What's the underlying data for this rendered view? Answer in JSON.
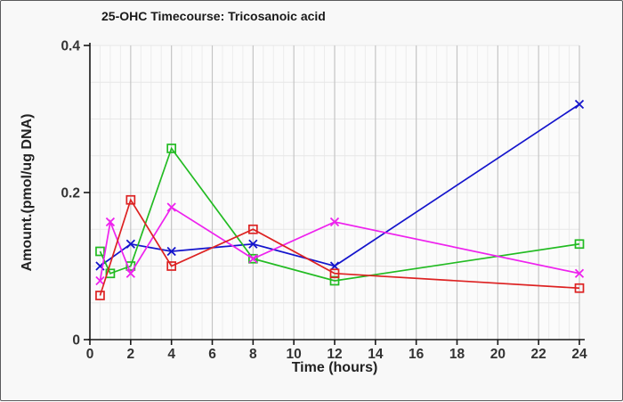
{
  "chart_data": {
    "type": "line",
    "title": "25-OHC Timecourse: Tricosanoic acid",
    "xlabel": "Time (hours)",
    "ylabel": "Amount.(pmol/ug DNA)",
    "xlim": [
      0,
      24
    ],
    "ylim": [
      0,
      0.4
    ],
    "x_ticks": [
      0,
      2,
      4,
      6,
      8,
      10,
      12,
      14,
      16,
      18,
      20,
      22,
      24
    ],
    "y_ticks": [
      {
        "value": 0,
        "label": "0"
      },
      {
        "value": 0.2,
        "label": "0.2"
      },
      {
        "value": 0.4,
        "label": "0.4"
      }
    ],
    "x_minor_step": 0.5,
    "y_minor_step": 0.05,
    "grid": true,
    "legend": "none",
    "series": [
      {
        "name": "blue",
        "color": "#1414cc",
        "marker": "x",
        "x": [
          0.5,
          2,
          4,
          8,
          12,
          24
        ],
        "y": [
          0.1,
          0.13,
          0.12,
          0.13,
          0.1,
          0.32
        ]
      },
      {
        "name": "green",
        "color": "#22bb22",
        "marker": "square",
        "x": [
          0.5,
          1,
          2,
          4,
          8,
          12,
          24
        ],
        "y": [
          0.12,
          0.09,
          0.1,
          0.26,
          0.11,
          0.08,
          0.13
        ]
      },
      {
        "name": "magenta",
        "color": "#ee22ee",
        "marker": "x",
        "x": [
          0.5,
          1,
          2,
          4,
          8,
          12,
          24
        ],
        "y": [
          0.08,
          0.16,
          0.09,
          0.18,
          0.11,
          0.16,
          0.09
        ]
      },
      {
        "name": "red",
        "color": "#dd2222",
        "marker": "square",
        "x": [
          0.5,
          2,
          4,
          8,
          12,
          24
        ],
        "y": [
          0.06,
          0.19,
          0.1,
          0.15,
          0.09,
          0.07
        ]
      }
    ],
    "colors": {
      "background": "#f8f8f8",
      "plot_background": "#fbfbfb",
      "grid_major": "#c5c5c5",
      "grid_minor": "#ececec",
      "grid_horizontal": "#e7e7e7",
      "axis": "#161616",
      "text": "#333333",
      "frame_border": "#5a5a5c"
    }
  }
}
